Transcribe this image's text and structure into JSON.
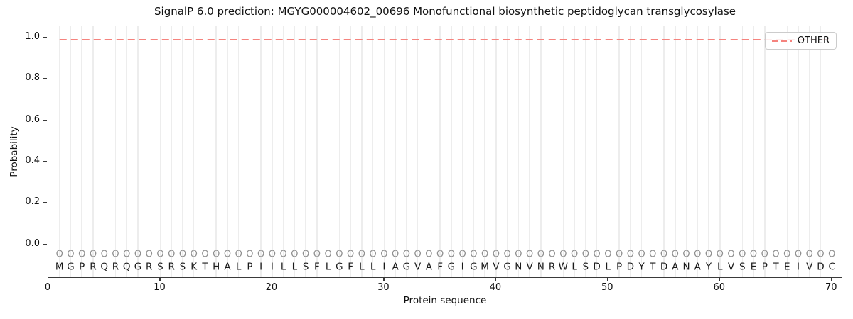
{
  "chart_data": {
    "type": "line",
    "title": "SignalP 6.0 prediction: MGYG000004602_00696 Monofunctional biosynthetic peptidoglycan transglycosylase",
    "xlabel": "Protein sequence",
    "ylabel": "Probability",
    "xlim": [
      0,
      71
    ],
    "ylim": [
      -0.165,
      1.055
    ],
    "x_ticks": [
      0,
      10,
      20,
      30,
      40,
      50,
      60,
      70
    ],
    "y_ticks": [
      0.0,
      0.2,
      0.4,
      0.6,
      0.8,
      1.0
    ],
    "grid": {
      "vertical_per_residue": true,
      "horizontal": false,
      "color": "#ededed"
    },
    "legend_position": "upper right",
    "legend": {
      "entries": [
        {
          "label": "OTHER",
          "line_style": "dashed",
          "color": "#f5837e"
        }
      ]
    },
    "series": [
      {
        "name": "OTHER",
        "style": "dashed",
        "color": "#f5837e",
        "x_start": 1,
        "x_end": 70,
        "constant_value": 0.99
      }
    ],
    "sequence": "MGPRQRQGRSRSKTHALPIILLSFLGFLLIAGVAFGIGMVGNVNRWLSDLPDYTDANAYLVSEPTEIVDC",
    "sequence_y": -0.11,
    "sequence_color": "#1a1a1a",
    "position_marker": {
      "symbol": "O",
      "y": -0.05,
      "color": "#8f8f8f"
    }
  },
  "colors": {
    "accent_line": "#f5837e",
    "grid": "#ededed",
    "axis": "#3a3a3a",
    "marker_gray": "#8f8f8f"
  }
}
